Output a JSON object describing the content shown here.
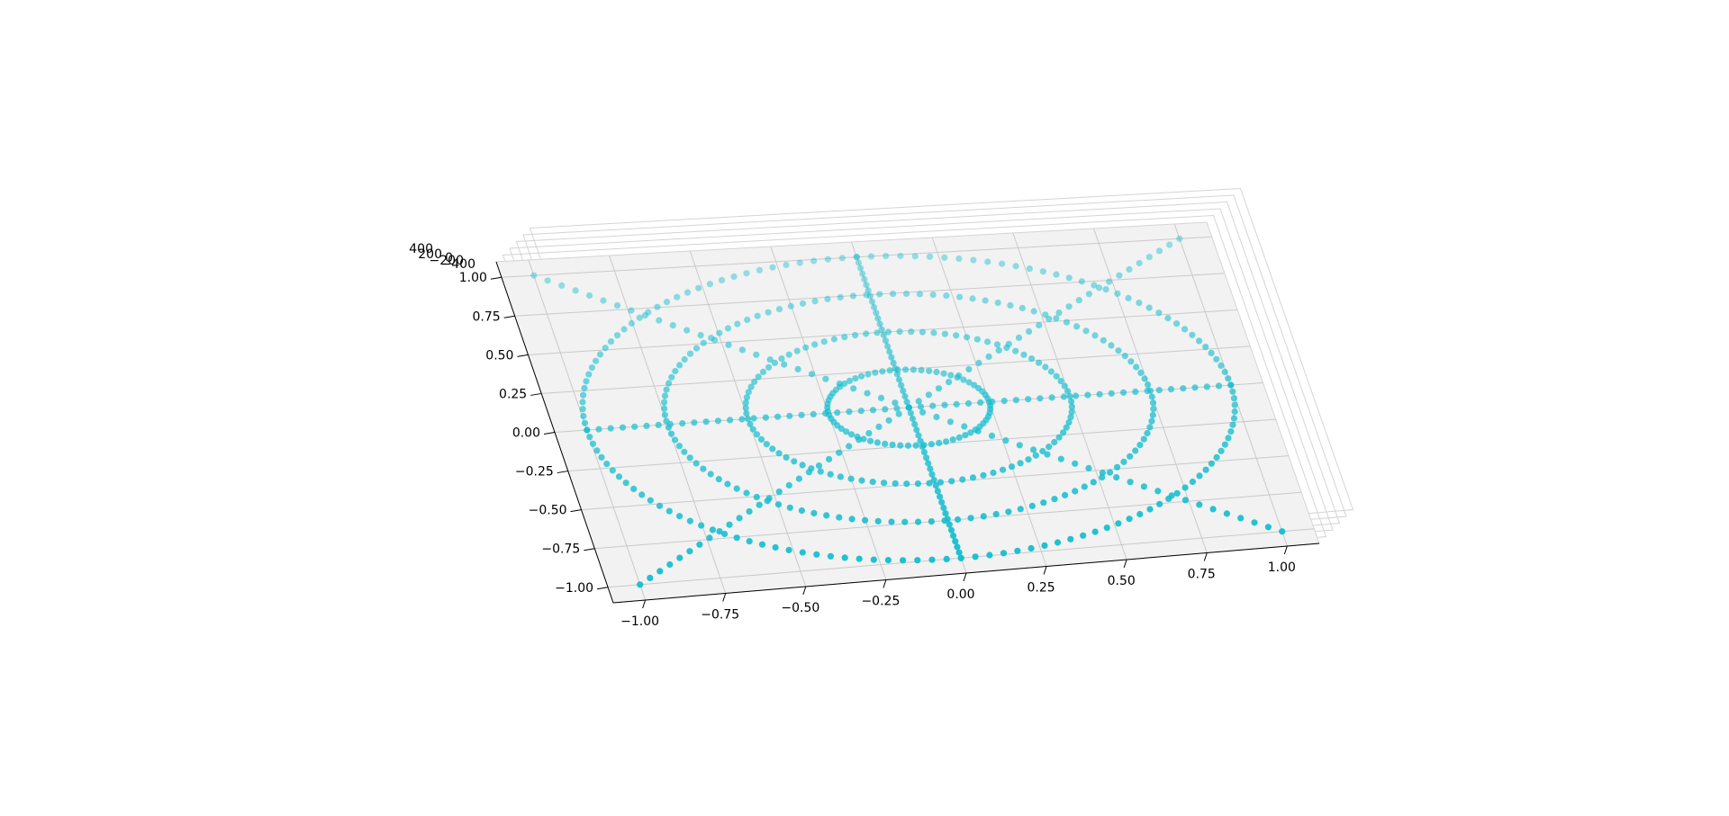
{
  "chart_data": {
    "type": "scatter",
    "projection": "3d",
    "title": "",
    "xlabel": "",
    "ylabel": "",
    "zlabel": "",
    "xlim": [
      -1.1,
      1.1
    ],
    "ylim": [
      -1.1,
      1.1
    ],
    "zlim": [
      -400,
      400
    ],
    "x_ticks": [
      "−1.00",
      "−0.75",
      "−0.50",
      "−0.25",
      "0.00",
      "0.25",
      "0.50",
      "0.75",
      "1.00"
    ],
    "y_ticks": [
      "−1.00",
      "−0.75",
      "−0.50",
      "−0.25",
      "0.00",
      "0.25",
      "0.50",
      "0.75",
      "1.00"
    ],
    "z_ticks": [
      "−400",
      "−200",
      "0",
      "200",
      "400"
    ],
    "grid": true,
    "legend": "none",
    "marker_color": "#17becf",
    "pane_color": "#f2f2f2",
    "series": [
      {
        "shape": "circle",
        "radius": 0.25,
        "z": 0
      },
      {
        "shape": "circle",
        "radius": 0.5,
        "z": 0
      },
      {
        "shape": "circle",
        "radius": 0.75,
        "z": 0
      },
      {
        "shape": "circle",
        "radius": 1.0,
        "z": 0
      },
      {
        "shape": "line",
        "from": [
          -1,
          -1
        ],
        "to": [
          1,
          1
        ],
        "z": 0
      },
      {
        "shape": "line",
        "from": [
          -1,
          1
        ],
        "to": [
          1,
          -1
        ],
        "z": 0
      },
      {
        "shape": "line",
        "from": [
          -1,
          0
        ],
        "to": [
          1,
          0
        ],
        "z": 0
      },
      {
        "shape": "line",
        "from": [
          0,
          -1
        ],
        "to": [
          0,
          1
        ],
        "z": 0
      }
    ]
  }
}
